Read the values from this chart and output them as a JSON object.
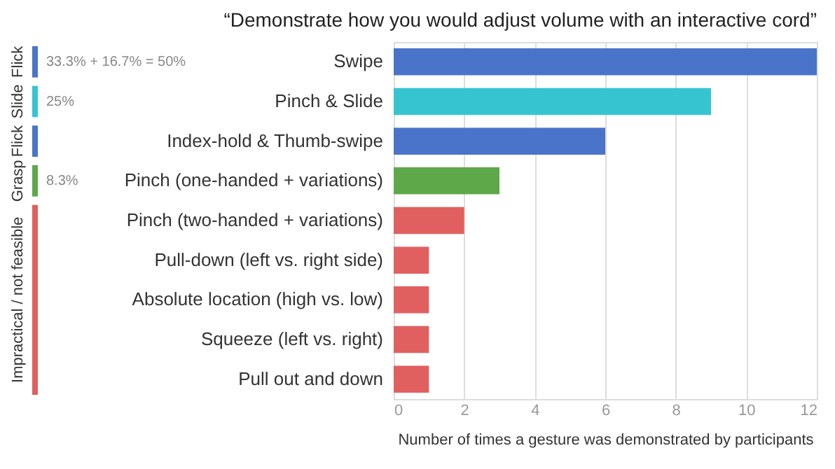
{
  "chart_data": {
    "type": "bar",
    "orientation": "horizontal",
    "title": "“Demonstrate how you would adjust volume with an interactive cord”",
    "xlabel": "Number of times a gesture was demonstrated by participants",
    "categories": [
      "Swipe",
      "Pinch & Slide",
      "Index-hold & Thumb-swipe",
      "Pinch (one-handed + variations)",
      "Pinch (two-handed + variations)",
      "Pull-down (left vs. right side)",
      "Absolute location (high vs. low)",
      "Squeeze (left vs. right)",
      "Pull out and down"
    ],
    "values": [
      12,
      9,
      6,
      3,
      2,
      1,
      1,
      1,
      1
    ],
    "colors": [
      "#4a74c9",
      "#36c5d0",
      "#4a74c9",
      "#5ea84a",
      "#e0605f",
      "#e0605f",
      "#e0605f",
      "#e0605f",
      "#e0605f"
    ],
    "xlim": [
      0,
      12
    ],
    "xticks": [
      0,
      2,
      4,
      6,
      8,
      10,
      12
    ],
    "grid": "x",
    "annotations": [
      "Flick",
      "Slide",
      "Flick",
      "Grasp",
      "Impractical / not feasible",
      "33.3% + 16.7% = 50%",
      "25%",
      "8.3%"
    ]
  }
}
